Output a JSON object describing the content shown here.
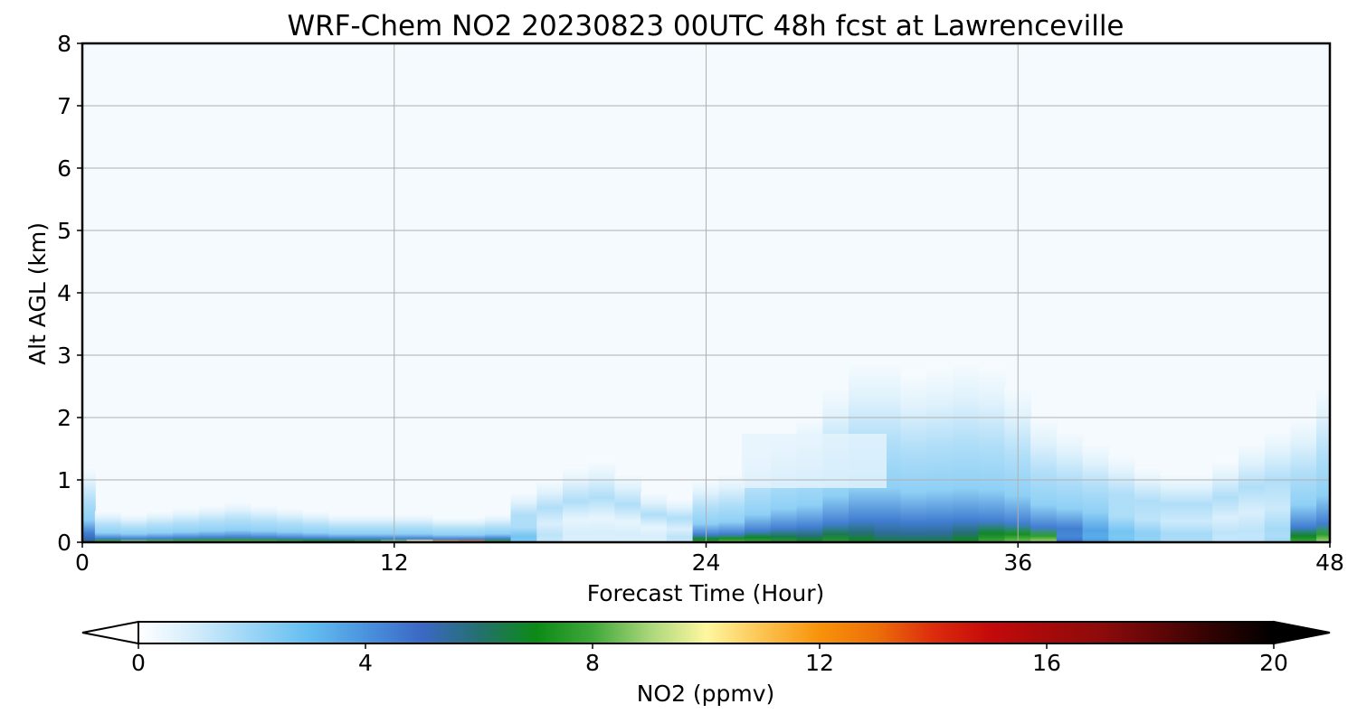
{
  "chart_data": {
    "type": "heatmap",
    "title": "WRF-Chem NO2  20230823 00UTC 48h fcst at Lawrenceville",
    "xlabel": "Forecast Time (Hour)",
    "ylabel": "Alt AGL (km)",
    "xlim": [
      0,
      48
    ],
    "ylim": [
      0,
      8
    ],
    "x_ticks": [
      "0",
      "12",
      "24",
      "36",
      "48"
    ],
    "y_ticks": [
      "0",
      "1",
      "2",
      "3",
      "4",
      "5",
      "6",
      "7",
      "8"
    ],
    "grid": true,
    "colorbar": {
      "label": "NO2  (ppmv)",
      "range": [
        0,
        20
      ],
      "ticks": [
        "0",
        "4",
        "8",
        "12",
        "16",
        "20"
      ],
      "extend": "both",
      "orientation": "horizontal",
      "stops": [
        {
          "value": 0,
          "color": "#ffffff"
        },
        {
          "value": 1,
          "color": "#d2ecfb"
        },
        {
          "value": 2,
          "color": "#9ad5f6"
        },
        {
          "value": 3,
          "color": "#64bef0"
        },
        {
          "value": 4,
          "color": "#4a93de"
        },
        {
          "value": 5,
          "color": "#3a68c4"
        },
        {
          "value": 6,
          "color": "#24706e"
        },
        {
          "value": 7,
          "color": "#0c8a16"
        },
        {
          "value": 8,
          "color": "#3fa83a"
        },
        {
          "value": 9,
          "color": "#a9d67a"
        },
        {
          "value": 10,
          "color": "#fef7a0"
        },
        {
          "value": 11,
          "color": "#fbc350"
        },
        {
          "value": 12,
          "color": "#f8920a"
        },
        {
          "value": 13,
          "color": "#ec6f0a"
        },
        {
          "value": 14,
          "color": "#dc2c0c"
        },
        {
          "value": 15,
          "color": "#c40a0a"
        },
        {
          "value": 16,
          "color": "#a60a0a"
        },
        {
          "value": 17,
          "color": "#8c0b0b"
        },
        {
          "value": 18,
          "color": "#5f0606"
        },
        {
          "value": 19,
          "color": "#2c0202"
        },
        {
          "value": 20,
          "color": "#000000"
        }
      ]
    },
    "profiles": {
      "hours": [
        0,
        1,
        2,
        3,
        4,
        5,
        6,
        7,
        8,
        9,
        10,
        11,
        12,
        13,
        14,
        15,
        16,
        17,
        18,
        19,
        20,
        21,
        22,
        23,
        24,
        25,
        26,
        27,
        28,
        29,
        30,
        31,
        32,
        33,
        34,
        35,
        36,
        37,
        38,
        39,
        40,
        41,
        42,
        43,
        44,
        45,
        46,
        47,
        48
      ],
      "surface_no2_ppmv": [
        6,
        9,
        10,
        9.5,
        9,
        9,
        9,
        9,
        8.8,
        8.5,
        8.5,
        9,
        10,
        12,
        14,
        15,
        9,
        3,
        1.5,
        1,
        1,
        1,
        1,
        1.5,
        8,
        8.5,
        8,
        7.5,
        7,
        7.5,
        7,
        6.5,
        6.5,
        6.5,
        7,
        8,
        8.5,
        9,
        5,
        4,
        3,
        2.5,
        2,
        2,
        1.5,
        1.5,
        2,
        8,
        9
      ],
      "plume_top_km": [
        1.2,
        0.5,
        0.45,
        0.5,
        0.55,
        0.6,
        0.65,
        0.6,
        0.55,
        0.5,
        0.45,
        0.45,
        0.45,
        0.45,
        0.4,
        0.4,
        0.45,
        0.8,
        1.0,
        1.2,
        1.3,
        1.1,
        0.8,
        0.7,
        1.0,
        1.1,
        1.5,
        1.8,
        2.0,
        2.5,
        2.9,
        2.9,
        2.7,
        2.8,
        2.9,
        2.8,
        2.5,
        2.0,
        1.8,
        1.6,
        1.4,
        1.2,
        1.1,
        1.1,
        1.3,
        1.6,
        1.8,
        2.0,
        2.5
      ]
    }
  }
}
